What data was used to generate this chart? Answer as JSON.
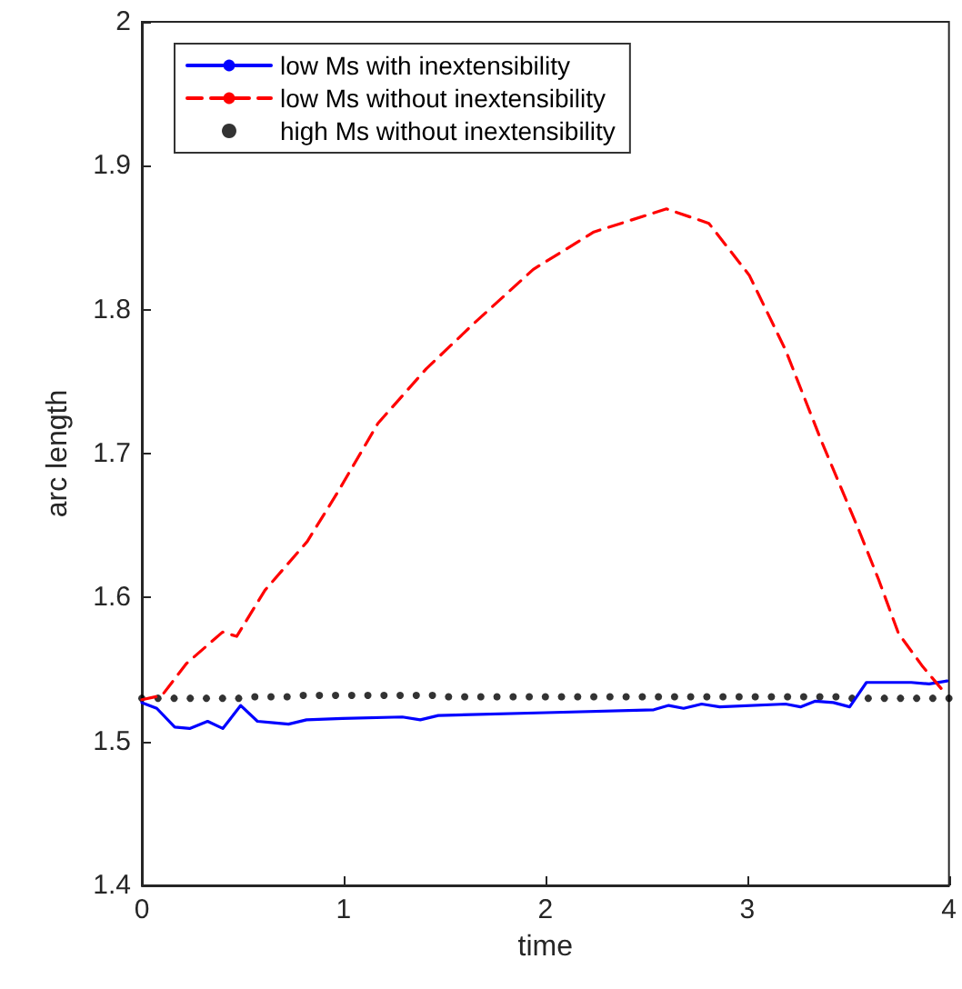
{
  "chart_data": {
    "type": "line",
    "xlabel": "time",
    "ylabel": "arc length",
    "xlim": [
      0,
      4
    ],
    "xticks": [
      0,
      1,
      2,
      3,
      4
    ],
    "ylim": [
      1.4,
      2
    ],
    "yticks": [
      1.4,
      1.5,
      1.6,
      1.7,
      1.8,
      1.9,
      2
    ],
    "grid": false,
    "legend": "top left",
    "series": [
      {
        "name": "low Ms with inextensibility",
        "color": "#0000ff",
        "line_style": "solid",
        "marker": "none",
        "x": [
          0,
          0.074,
          0.163,
          0.237,
          0.326,
          0.401,
          0.49,
          0.573,
          0.653,
          0.727,
          0.816,
          0.994,
          1.291,
          1.38,
          1.469,
          2.003,
          2.537,
          2.611,
          2.685,
          2.774,
          2.864,
          3.19,
          3.264,
          3.338,
          3.427,
          3.508,
          3.591,
          3.813,
          3.902,
          3.991
        ],
        "values": [
          1.527,
          1.523,
          1.51,
          1.509,
          1.514,
          1.509,
          1.525,
          1.514,
          1.513,
          1.512,
          1.515,
          1.516,
          1.517,
          1.515,
          1.518,
          1.52,
          1.522,
          1.525,
          1.523,
          1.526,
          1.524,
          1.526,
          1.524,
          1.528,
          1.527,
          1.524,
          1.541,
          1.541,
          1.54,
          1.542
        ]
      },
      {
        "name": "low Ms without inextensibility",
        "color": "#ff0000",
        "line_style": "dashed",
        "marker": "none",
        "x": [
          0,
          0.1,
          0.22,
          0.4,
          0.47,
          0.61,
          0.82,
          0.97,
          1.17,
          1.41,
          1.65,
          1.94,
          2.24,
          2.6,
          2.81,
          3.01,
          3.19,
          3.37,
          3.55,
          3.65,
          3.75,
          3.87,
          3.99
        ],
        "values": [
          1.529,
          1.532,
          1.554,
          1.576,
          1.573,
          1.605,
          1.639,
          1.673,
          1.721,
          1.759,
          1.791,
          1.828,
          1.854,
          1.87,
          1.86,
          1.824,
          1.772,
          1.708,
          1.648,
          1.613,
          1.575,
          1.552,
          1.532
        ]
      },
      {
        "name": "high Ms without inextensibility",
        "type": "scatter",
        "color": "#000000",
        "marker": "circle",
        "x": [
          0,
          0.08,
          0.16,
          0.24,
          0.32,
          0.4,
          0.48,
          0.56,
          0.64,
          0.72,
          0.8,
          0.88,
          0.96,
          1.04,
          1.12,
          1.2,
          1.28,
          1.36,
          1.44,
          1.52,
          1.6,
          1.68,
          1.76,
          1.84,
          1.92,
          2,
          2.08,
          2.16,
          2.24,
          2.32,
          2.4,
          2.48,
          2.56,
          2.64,
          2.72,
          2.8,
          2.88,
          2.96,
          3.04,
          3.12,
          3.2,
          3.28,
          3.36,
          3.44,
          3.52,
          3.6,
          3.68,
          3.76,
          3.84,
          3.92,
          4
        ],
        "values": [
          1.53,
          1.53,
          1.53,
          1.53,
          1.53,
          1.53,
          1.53,
          1.531,
          1.531,
          1.531,
          1.532,
          1.532,
          1.532,
          1.532,
          1.532,
          1.532,
          1.532,
          1.532,
          1.532,
          1.531,
          1.531,
          1.531,
          1.531,
          1.531,
          1.531,
          1.531,
          1.531,
          1.531,
          1.531,
          1.531,
          1.531,
          1.531,
          1.531,
          1.531,
          1.531,
          1.531,
          1.531,
          1.531,
          1.531,
          1.531,
          1.531,
          1.531,
          1.531,
          1.531,
          1.53,
          1.53,
          1.53,
          1.53,
          1.53,
          1.53,
          1.53
        ]
      }
    ]
  }
}
